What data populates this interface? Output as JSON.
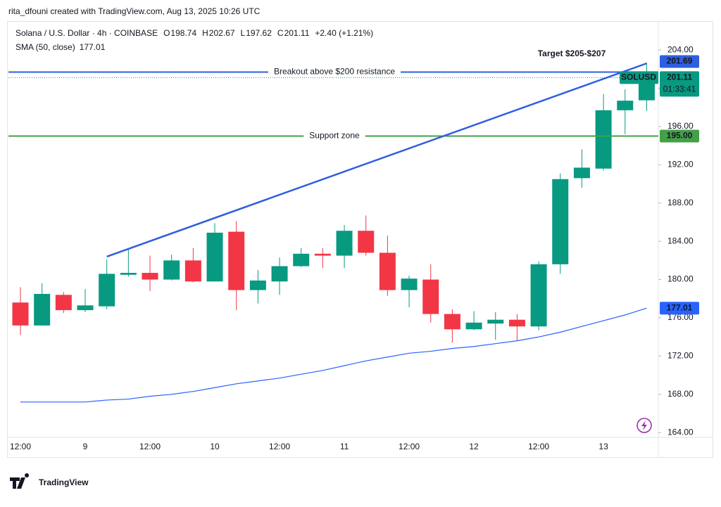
{
  "header": {
    "credit": "rita_dfouni created with TradingView.com, Aug 13, 2025 10:26 UTC"
  },
  "legend": {
    "symbol": "Solana / U.S. Dollar · 4h · COINBASE",
    "fields": [
      {
        "label": "O",
        "value": 198.74
      },
      {
        "label": "H",
        "value": 202.67
      },
      {
        "label": "L",
        "value": 197.62
      },
      {
        "label": "C",
        "value": 201.11
      }
    ],
    "change": "+2.40 (+1.21%)",
    "sma_label": "SMA (50, close)",
    "sma_value": 177.01
  },
  "chart_data": {
    "type": "candlestick",
    "categories": [
      "12:00",
      null,
      null,
      "9",
      null,
      null,
      "12:00",
      null,
      null,
      "10",
      null,
      null,
      "12:00",
      null,
      null,
      "11",
      null,
      null,
      "12:00",
      null,
      null,
      "12",
      null,
      null,
      "12:00",
      null,
      null,
      "13",
      null,
      null
    ],
    "open": [
      177.6,
      175.2,
      178.4,
      176.8,
      177.2,
      180.5,
      180.7,
      180.0,
      182.0,
      179.8,
      185.0,
      178.9,
      179.8,
      181.4,
      182.7,
      182.5,
      185.1,
      182.8,
      178.9,
      180.0,
      176.4,
      174.8,
      175.4,
      175.8,
      175.1,
      181.6,
      190.6,
      191.6,
      197.7,
      198.74
    ],
    "high": [
      179.2,
      179.6,
      178.7,
      179.0,
      182.1,
      183.2,
      182.5,
      182.6,
      183.3,
      185.9,
      186.1,
      181.0,
      182.3,
      183.3,
      183.3,
      185.7,
      186.7,
      184.6,
      180.4,
      181.6,
      176.9,
      176.7,
      176.6,
      176.4,
      181.9,
      191.1,
      193.6,
      199.4,
      199.9,
      202.67
    ],
    "low": [
      174.2,
      175.2,
      176.5,
      176.6,
      176.9,
      180.3,
      178.8,
      179.9,
      179.7,
      179.8,
      176.8,
      177.5,
      178.4,
      181.3,
      181.2,
      181.2,
      182.5,
      178.3,
      177.1,
      175.5,
      173.4,
      174.7,
      173.7,
      173.6,
      174.7,
      180.6,
      189.6,
      191.4,
      195.2,
      197.62
    ],
    "close": [
      175.2,
      178.5,
      176.8,
      177.3,
      180.6,
      180.7,
      180.0,
      182.0,
      179.8,
      184.9,
      178.9,
      179.9,
      181.4,
      182.7,
      182.5,
      185.1,
      182.8,
      178.9,
      180.1,
      176.4,
      174.8,
      175.5,
      175.8,
      175.1,
      181.6,
      190.5,
      191.7,
      197.7,
      198.7,
      201.11
    ],
    "up_color": "#089981",
    "down_color": "#f23645",
    "series": [
      {
        "name": "SMA (50, close)",
        "color": "#2962ff",
        "values": [
          167.2,
          167.2,
          167.2,
          167.2,
          167.4,
          167.5,
          167.8,
          168.0,
          168.3,
          168.7,
          169.1,
          169.4,
          169.7,
          170.1,
          170.5,
          171.0,
          171.5,
          171.9,
          172.3,
          172.5,
          172.8,
          173.0,
          173.3,
          173.6,
          174.0,
          174.5,
          175.1,
          175.7,
          176.3,
          177.01
        ]
      }
    ],
    "ylim": [
      163.5,
      206.8
    ],
    "yticks": [
      {
        "value": 164,
        "label": "164.00"
      },
      {
        "value": 168,
        "label": "168.00"
      },
      {
        "value": 172,
        "label": "172.00"
      },
      {
        "value": 176,
        "label": "176.00"
      },
      {
        "value": 180,
        "label": "180.00"
      },
      {
        "value": 184,
        "label": "184.00"
      },
      {
        "value": 188,
        "label": "188.00"
      },
      {
        "value": 192,
        "label": "192.00"
      },
      {
        "value": 196,
        "label": "196.00"
      },
      {
        "value": 200,
        "label": "200.00"
      },
      {
        "value": 204,
        "label": "204.00"
      }
    ],
    "trendline": {
      "start": {
        "index": 4,
        "price": 182.4
      },
      "end": {
        "index": 29,
        "price": 202.6
      },
      "color": "#2f5fe0",
      "label": "Target $205-$207"
    },
    "hlines": [
      {
        "value": 201.69,
        "label": "Breakout above $200 resistance",
        "color": "#2f5fe0"
      },
      {
        "value": 195,
        "price_label": "195.00",
        "label": "Support zone",
        "color": "#43a047"
      }
    ],
    "last_price": {
      "symbol": "SOLUSD",
      "value": 201.11,
      "countdown": "01:33:41"
    }
  },
  "footer": {
    "brand": "TradingView"
  }
}
